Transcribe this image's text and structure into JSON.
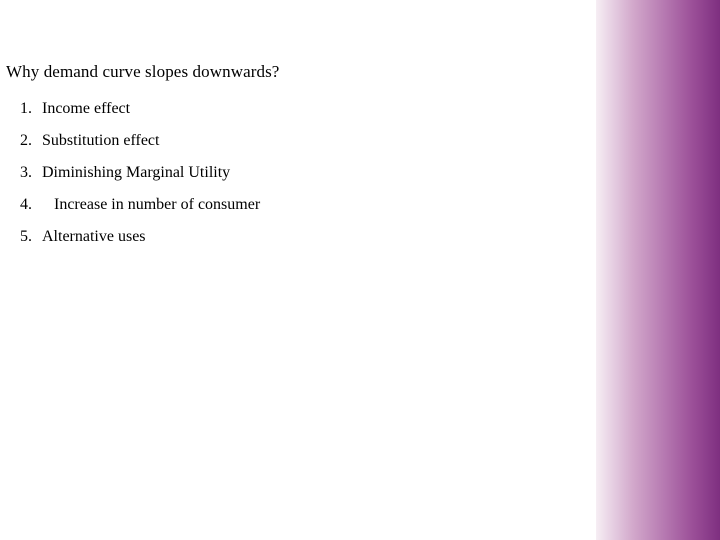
{
  "heading": "Why demand curve slopes downwards?",
  "items": [
    {
      "n": "1.",
      "t": "Income effect"
    },
    {
      "n": "2.",
      "t": "Substitution effect"
    },
    {
      "n": "3.",
      "t": "Diminishing Marginal Utility"
    },
    {
      "n": "4.",
      "t": "Increase in number of consumer"
    },
    {
      "n": "5.",
      "t": "Alternative uses"
    }
  ],
  "side_gradient": {
    "from": "#f6eef4",
    "to": "#7e2f80"
  }
}
